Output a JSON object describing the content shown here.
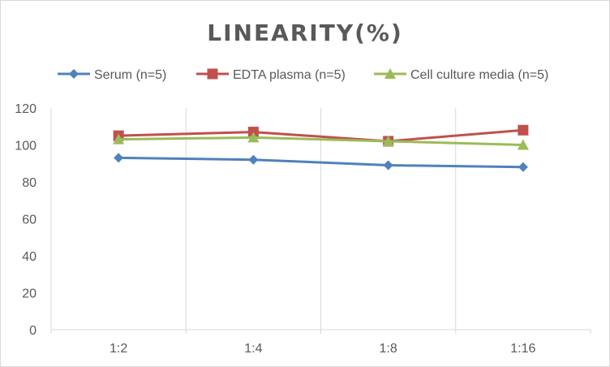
{
  "chart_data": {
    "type": "line",
    "title": "LINEARITY(%)",
    "categories": [
      "1:2",
      "1:4",
      "1:8",
      "1:16"
    ],
    "ylim": [
      0,
      120
    ],
    "yticks": [
      0,
      20,
      40,
      60,
      80,
      100,
      120
    ],
    "grid": "vertical",
    "legend_position": "top",
    "series": [
      {
        "name": "Serum (n=5)",
        "color": "#4F81BD",
        "marker": "diamond",
        "values": [
          93,
          92,
          89,
          88
        ]
      },
      {
        "name": "EDTA plasma (n=5)",
        "color": "#C0504D",
        "marker": "square",
        "values": [
          105,
          107,
          102,
          108
        ]
      },
      {
        "name": "Cell culture media (n=5)",
        "color": "#9BBB59",
        "marker": "triangle",
        "values": [
          103,
          104,
          102,
          100
        ]
      }
    ]
  }
}
